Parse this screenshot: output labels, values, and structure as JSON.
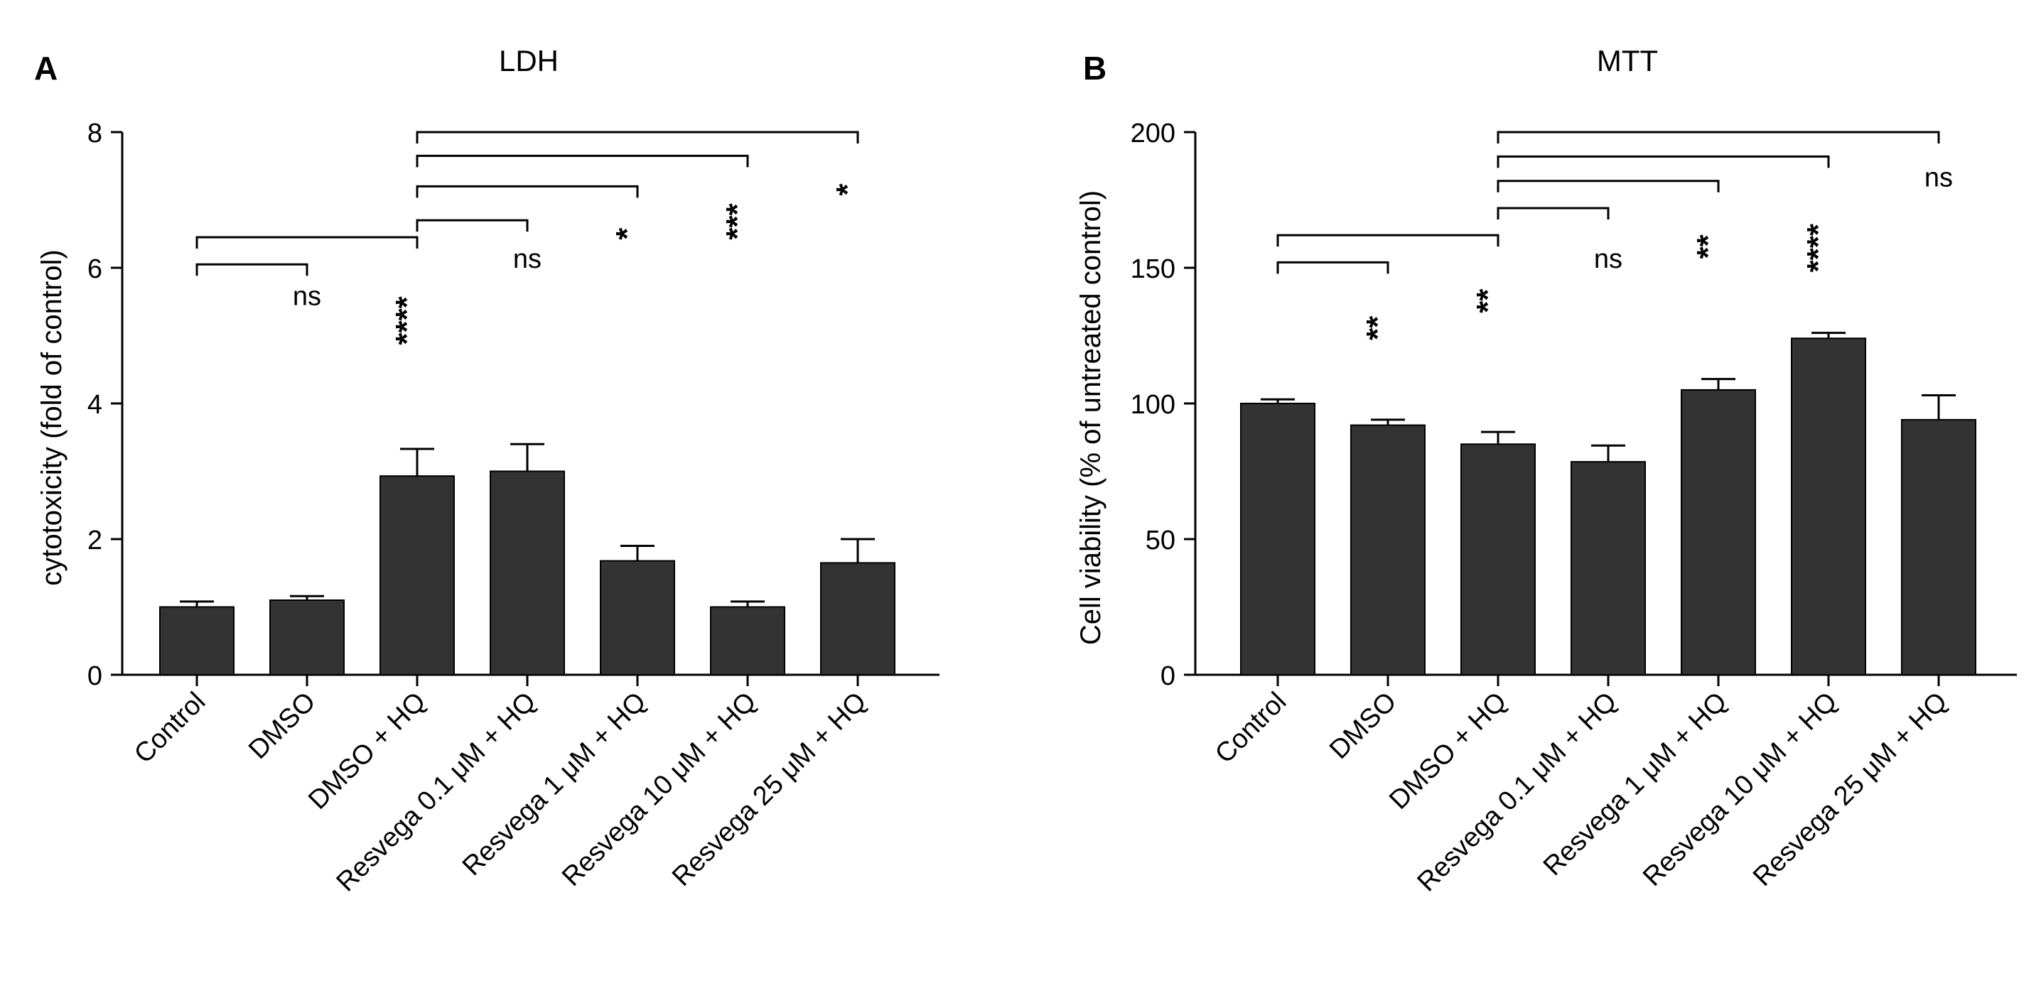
{
  "colors": {
    "bar": "#333333",
    "ink": "#000000",
    "background": "#ffffff"
  },
  "chart_data": [
    {
      "type": "bar",
      "panel_letter": "A",
      "title": "LDH",
      "xlabel": "",
      "ylabel": "cytotoxicity (fold of control)",
      "ylim": [
        0,
        8
      ],
      "yticks": [
        0,
        2,
        4,
        6,
        8
      ],
      "categories": [
        "Control",
        "DMSO",
        "DMSO + HQ",
        "Resvega 0.1 μM + HQ",
        "Resvega 1 μM + HQ",
        "Resvega 10 μM + HQ",
        "Resvega 25 μM + HQ"
      ],
      "values": [
        1.0,
        1.1,
        2.93,
        3.0,
        1.68,
        1.0,
        1.65
      ],
      "errors": [
        0.08,
        0.06,
        0.4,
        0.4,
        0.22,
        0.08,
        0.35
      ],
      "comparisons": [
        {
          "from": 0,
          "to": 1,
          "y": 6.05,
          "label": "ns",
          "label_y": 5.45
        },
        {
          "from": 0,
          "to": 2,
          "y": 6.45,
          "label": "****",
          "label_y": 5.05
        },
        {
          "from": 2,
          "to": 3,
          "y": 6.7,
          "label": "ns",
          "label_y": 6.0
        },
        {
          "from": 2,
          "to": 4,
          "y": 7.2,
          "label": "*",
          "label_y": 6.6
        },
        {
          "from": 2,
          "to": 5,
          "y": 7.65,
          "label": "***",
          "label_y": 6.6
        },
        {
          "from": 2,
          "to": 6,
          "y": 8.0,
          "label": "*",
          "label_y": 7.25
        }
      ]
    },
    {
      "type": "bar",
      "panel_letter": "B",
      "title": "MTT",
      "xlabel": "",
      "ylabel": "Cell viability (% of untreated control)",
      "ylim": [
        0,
        200
      ],
      "yticks": [
        0,
        50,
        100,
        150,
        200
      ],
      "categories": [
        "Control",
        "DMSO",
        "DMSO + HQ",
        "Resvega 0.1 μM + HQ",
        "Resvega 1 μM + HQ",
        "Resvega 10 μM + HQ",
        "Resvega 25 μM + HQ"
      ],
      "values": [
        100,
        92,
        85,
        78.5,
        105,
        124,
        94
      ],
      "errors": [
        1.5,
        2,
        4.5,
        6,
        4,
        2,
        9
      ],
      "comparisons": [
        {
          "from": 0,
          "to": 1,
          "y": 152,
          "label": "**",
          "label_y": 128
        },
        {
          "from": 0,
          "to": 2,
          "y": 162,
          "label": "**",
          "label_y": 138
        },
        {
          "from": 2,
          "to": 3,
          "y": 172,
          "label": "ns",
          "label_y": 150
        },
        {
          "from": 2,
          "to": 4,
          "y": 182,
          "label": "**",
          "label_y": 158
        },
        {
          "from": 2,
          "to": 5,
          "y": 191,
          "label": "****",
          "label_y": 153
        },
        {
          "from": 2,
          "to": 6,
          "y": 200,
          "label": "ns",
          "label_y": 180
        }
      ]
    }
  ]
}
